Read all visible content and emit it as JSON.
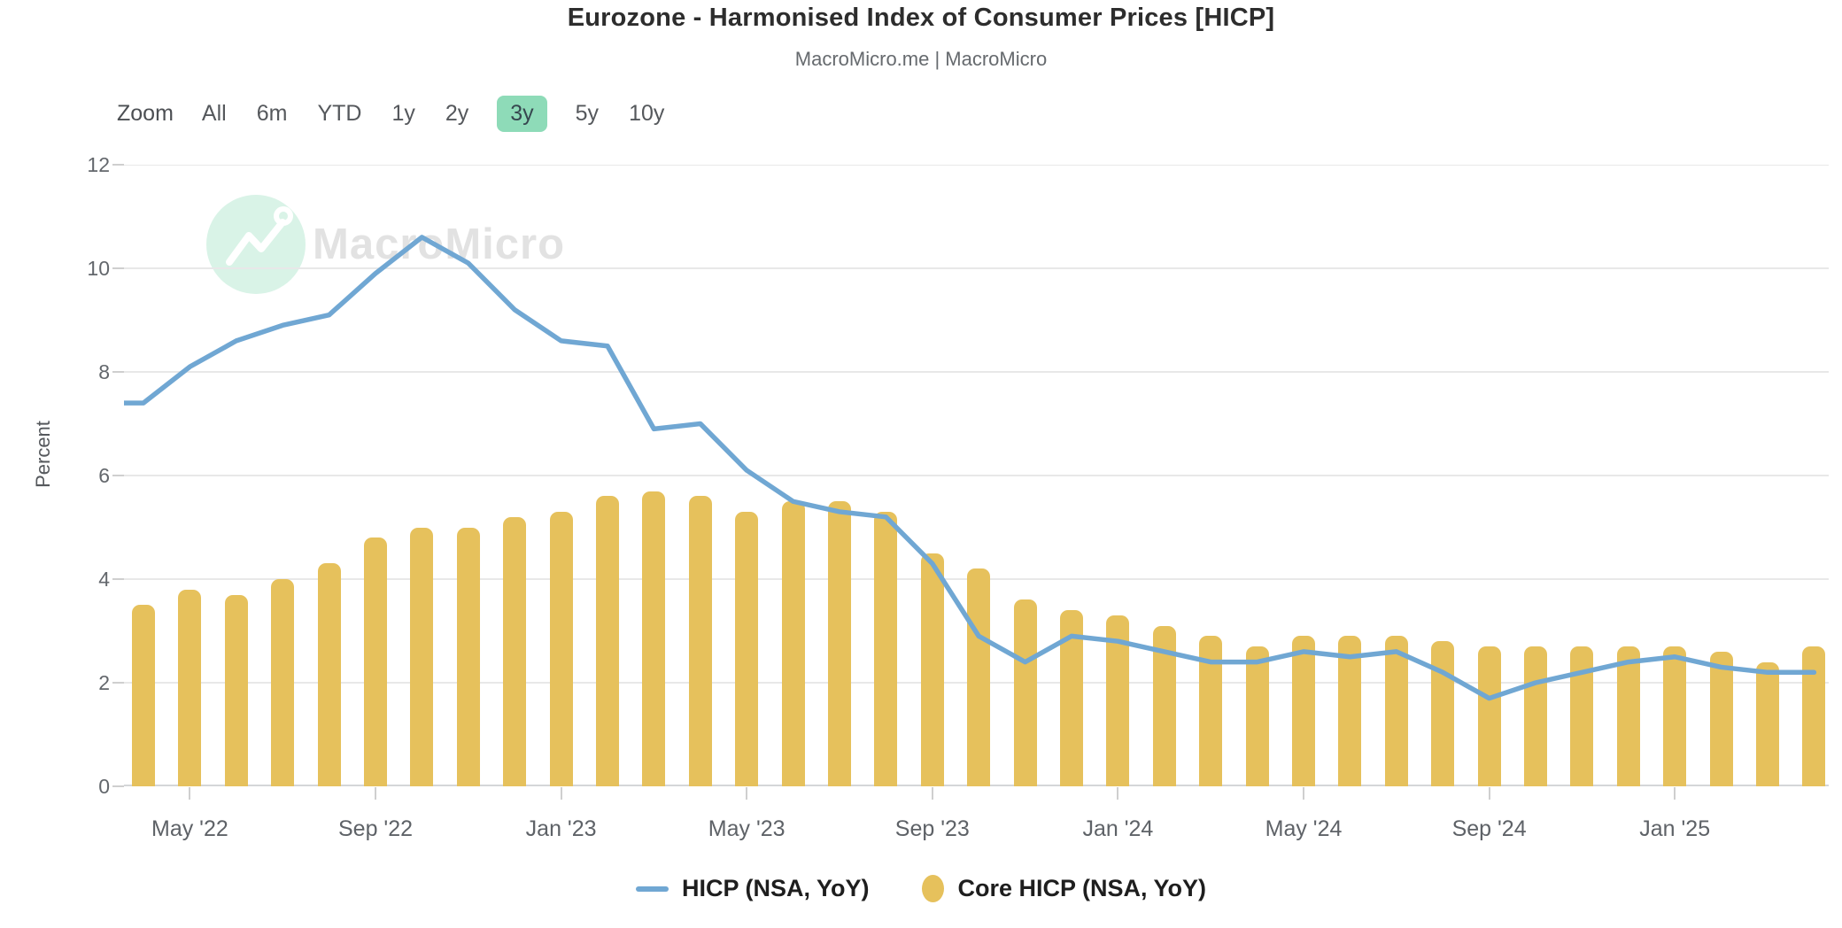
{
  "header": {
    "title": "Eurozone - Harmonised Index of Consumer Prices [HICP]",
    "subtitle": "MacroMicro.me | MacroMicro"
  },
  "range_selector": {
    "zoom_label": "Zoom",
    "options": [
      "All",
      "6m",
      "YTD",
      "1y",
      "2y",
      "3y",
      "5y",
      "10y"
    ],
    "active": "3y",
    "active_bg": "#8edbb8",
    "active_text": "#36474f"
  },
  "watermark": {
    "text": "MacroMicro",
    "circle_color": "#d9f3e7"
  },
  "y_axis": {
    "title": "Percent",
    "ticks": [
      12,
      10,
      8,
      6,
      4,
      2,
      0
    ]
  },
  "x_axis": {
    "labels": [
      "May '22",
      "Sep '22",
      "Jan '23",
      "May '23",
      "Sep '23",
      "Jan '24",
      "May '24",
      "Sep '24",
      "Jan '25"
    ]
  },
  "legend": [
    {
      "label": "HICP (NSA, YoY)",
      "marker": "line",
      "color": "#70a7d3"
    },
    {
      "label": "Core HICP (NSA, YoY)",
      "marker": "ellipse",
      "color": "#e6c15c"
    }
  ],
  "chart_data": {
    "type": "combo",
    "title": "Eurozone - Harmonised Index of Consumer Prices [HICP]",
    "xlabel": "",
    "ylabel": "Percent",
    "ylim": [
      0,
      12
    ],
    "grid": true,
    "legend_position": "bottom",
    "categories": [
      "Mar '22",
      "Apr '22",
      "May '22",
      "Jun '22",
      "Jul '22",
      "Aug '22",
      "Sep '22",
      "Oct '22",
      "Nov '22",
      "Dec '22",
      "Jan '23",
      "Feb '23",
      "Mar '23",
      "Apr '23",
      "May '23",
      "Jun '23",
      "Jul '23",
      "Aug '23",
      "Sep '23",
      "Oct '23",
      "Nov '23",
      "Dec '23",
      "Jan '24",
      "Feb '24",
      "Mar '24",
      "Apr '24",
      "May '24",
      "Jun '24",
      "Jul '24",
      "Aug '24",
      "Sep '24",
      "Oct '24",
      "Nov '24",
      "Dec '24",
      "Jan '25",
      "Feb '25",
      "Mar '25",
      "Apr '25"
    ],
    "series": [
      {
        "name": "HICP (NSA, YoY)",
        "type": "line",
        "color": "#70a7d3",
        "values": [
          7.4,
          7.4,
          8.1,
          8.6,
          8.9,
          9.1,
          9.9,
          10.6,
          10.1,
          9.2,
          8.6,
          8.5,
          6.9,
          7.0,
          6.1,
          5.5,
          5.3,
          5.2,
          4.3,
          2.9,
          2.4,
          2.9,
          2.8,
          2.6,
          2.4,
          2.4,
          2.6,
          2.5,
          2.6,
          2.2,
          1.7,
          2.0,
          2.2,
          2.4,
          2.5,
          2.3,
          2.2,
          2.2
        ]
      },
      {
        "name": "Core HICP (NSA, YoY)",
        "type": "bar",
        "color": "#e6c15c",
        "values": [
          null,
          3.5,
          3.8,
          3.7,
          4.0,
          4.3,
          4.8,
          5.0,
          5.0,
          5.2,
          5.3,
          5.6,
          5.7,
          5.6,
          5.3,
          5.5,
          5.5,
          5.3,
          4.5,
          4.2,
          3.6,
          3.4,
          3.3,
          3.1,
          2.9,
          2.7,
          2.9,
          2.9,
          2.9,
          2.8,
          2.7,
          2.7,
          2.7,
          2.7,
          2.7,
          2.6,
          2.4,
          2.7
        ]
      }
    ]
  }
}
